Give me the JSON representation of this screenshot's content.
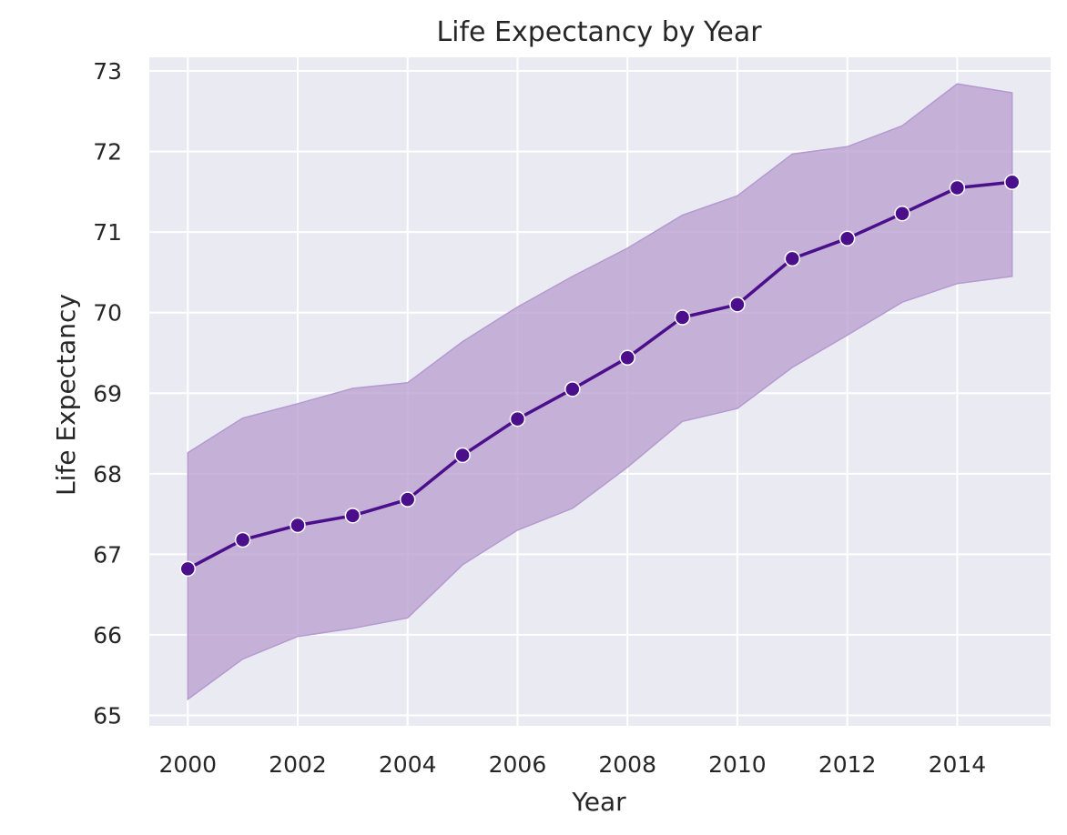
{
  "chart_data": {
    "type": "line",
    "title": "Life Expectancy by Year",
    "xlabel": "Year",
    "ylabel": "Life Expectancy",
    "xlim": [
      1999.3,
      2015.7
    ],
    "ylim": [
      64.87,
      73.17
    ],
    "xticks": [
      2000,
      2002,
      2004,
      2006,
      2008,
      2010,
      2012,
      2014
    ],
    "yticks": [
      65,
      66,
      67,
      68,
      69,
      70,
      71,
      72,
      73
    ],
    "grid": true,
    "legend": "none",
    "x": [
      2000,
      2001,
      2002,
      2003,
      2004,
      2005,
      2006,
      2007,
      2008,
      2009,
      2010,
      2011,
      2012,
      2013,
      2014,
      2015
    ],
    "series": [
      {
        "values": [
          66.82,
          67.18,
          67.36,
          67.48,
          67.68,
          68.23,
          68.68,
          69.05,
          69.44,
          69.94,
          70.1,
          70.67,
          70.92,
          71.23,
          71.55,
          71.62
        ],
        "ci_upper": [
          68.26,
          68.69,
          68.87,
          69.06,
          69.13,
          69.64,
          70.07,
          70.45,
          70.8,
          71.21,
          71.45,
          71.97,
          72.06,
          72.32,
          72.84,
          72.73
        ],
        "ci_lower": [
          65.2,
          65.7,
          65.98,
          66.08,
          66.21,
          66.87,
          67.3,
          67.57,
          68.08,
          68.65,
          68.81,
          69.32,
          69.72,
          70.13,
          70.36,
          70.45
        ]
      }
    ],
    "colors": {
      "line": "#4b0f8c",
      "marker_fill": "#4b0f8c",
      "marker_edge": "#ffffff",
      "band_fill": "#b89ccd",
      "band_edge": "#b49ad0",
      "plot_background": "#eaeaf2",
      "grid": "#ffffff"
    }
  }
}
